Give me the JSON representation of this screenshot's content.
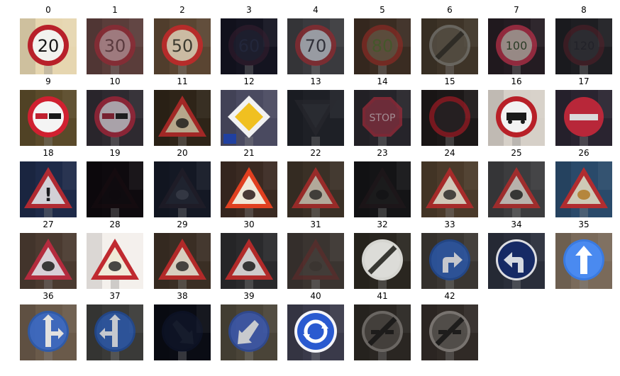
{
  "figure": {
    "panels": [
      {
        "label": "0",
        "kind": "speed",
        "text": "20",
        "bg": "#e6d6b0",
        "bright": 1.0,
        "ring": "#b8202a",
        "fill": "#f2f2ee",
        "ink": "#161616"
      },
      {
        "label": "1",
        "kind": "speed",
        "text": "30",
        "bg": "#5a3d3a",
        "bright": 0.8,
        "ring": "#8e2a34",
        "fill": "#b08a90",
        "ink": "#5a3a40"
      },
      {
        "label": "2",
        "kind": "speed",
        "text": "50",
        "bg": "#5a4532",
        "bright": 0.9,
        "ring": "#c02a2a",
        "fill": "#d8c8b0",
        "ink": "#3a3a30"
      },
      {
        "label": "3",
        "kind": "speed",
        "text": "60",
        "bg": "#141420",
        "bright": 0.5,
        "ring": "#3a1e30",
        "fill": "#26283a",
        "ink": "#303854"
      },
      {
        "label": "4",
        "kind": "speed",
        "text": "70",
        "bg": "#3a3a3e",
        "bright": 0.8,
        "ring": "#8a2a30",
        "fill": "#b0b4bc",
        "ink": "#30303a"
      },
      {
        "label": "5",
        "kind": "speed",
        "text": "80",
        "bg": "#3a2c22",
        "bright": 0.7,
        "ring": "#8a2a24",
        "fill": "#6a5a48",
        "ink": "#4a6a30"
      },
      {
        "label": "6",
        "kind": "endspeed",
        "text": "",
        "bg": "#3e3428",
        "bright": 0.7,
        "ring": "#7a7a76",
        "fill": "#5a544a",
        "ink": "#2a2a26"
      },
      {
        "label": "7",
        "kind": "speed",
        "text": "100",
        "bg": "#241c22",
        "bright": 0.7,
        "ring": "#c0304a",
        "fill": "#c8b8b0",
        "ink": "#2e4a2a"
      },
      {
        "label": "8",
        "kind": "speed",
        "text": "120",
        "bg": "#1e1e22",
        "bright": 0.5,
        "ring": "#5a1e28",
        "fill": "#3a3a40",
        "ink": "#262630"
      },
      {
        "label": "9",
        "kind": "nopassing",
        "text": "",
        "bg": "#5a4a2a",
        "bright": 1.0,
        "ring": "#d02030",
        "fill": "#f4f4f4",
        "ink": "#c02030"
      },
      {
        "label": "10",
        "kind": "nopassing",
        "text": "",
        "bg": "#2e2a30",
        "bright": 0.8,
        "ring": "#a02438",
        "fill": "#c8c0c8",
        "ink": "#8a2030"
      },
      {
        "label": "11",
        "kind": "tri",
        "text": "",
        "bg": "#2e2418",
        "bright": 0.8,
        "ring": "#c02a2a",
        "fill": "#d8c8a8",
        "ink": "#1e1e1e"
      },
      {
        "label": "12",
        "kind": "priority",
        "text": "",
        "bg": "#4a4a60",
        "bright": 1.0,
        "ring": "#f2f2f2",
        "fill": "#f0c020",
        "ink": "#2040a0"
      },
      {
        "label": "13",
        "kind": "yield",
        "text": "",
        "bg": "#1e2026",
        "bright": 0.5,
        "ring": "#2a2a30",
        "fill": "#34363c",
        "ink": "#2a2a30"
      },
      {
        "label": "14",
        "kind": "stop",
        "text": "STOP",
        "bg": "#26242a",
        "bright": 0.7,
        "ring": "#a02a3a",
        "fill": "#8a3040",
        "ink": "#d8b8c0"
      },
      {
        "label": "15",
        "kind": "novehicles",
        "text": "",
        "bg": "#1c1818",
        "bright": 0.7,
        "ring": "#a01a24",
        "fill": "#2a2226",
        "ink": "#2a2226"
      },
      {
        "label": "16",
        "kind": "notrucks",
        "text": "",
        "bg": "#d6d0c8",
        "bright": 1.0,
        "ring": "#b82028",
        "fill": "#f2f2f2",
        "ink": "#1a1a1a"
      },
      {
        "label": "17",
        "kind": "noentry",
        "text": "",
        "bg": "#2a2430",
        "bright": 0.9,
        "ring": "#c0202e",
        "fill": "#c8283a",
        "ink": "#eeeeee"
      },
      {
        "label": "18",
        "kind": "tri",
        "text": "!",
        "bg": "#1e2a48",
        "bright": 0.9,
        "ring": "#c02a30",
        "fill": "#e6e2e6",
        "ink": "#1a1a1a"
      },
      {
        "label": "19",
        "kind": "tri",
        "text": "",
        "bg": "#0e0a0e",
        "bright": 0.3,
        "ring": "#221014",
        "fill": "#140e12",
        "ink": "#0e0a0e"
      },
      {
        "label": "20",
        "kind": "tri",
        "text": "",
        "bg": "#141824",
        "bright": 0.5,
        "ring": "#28202a",
        "fill": "#2a2e3a",
        "ink": "#5a5e6a"
      },
      {
        "label": "21",
        "kind": "tri",
        "text": "",
        "bg": "#3a2a22",
        "bright": 1.0,
        "ring": "#e04020",
        "fill": "#f0e8d8",
        "ink": "#2a1a1a"
      },
      {
        "label": "22",
        "kind": "tri",
        "text": "",
        "bg": "#3a3026",
        "bright": 0.8,
        "ring": "#b02a2a",
        "fill": "#d0c8b8",
        "ink": "#2a2a2a"
      },
      {
        "label": "23",
        "kind": "tri",
        "text": "",
        "bg": "#141416",
        "bright": 0.4,
        "ring": "#2a1a1e",
        "fill": "#262626",
        "ink": "#141414"
      },
      {
        "label": "24",
        "kind": "tri",
        "text": "",
        "bg": "#4a3a2a",
        "bright": 0.9,
        "ring": "#b02a2a",
        "fill": "#e0d8c8",
        "ink": "#2a2a2a"
      },
      {
        "label": "25",
        "kind": "tri",
        "text": "",
        "bg": "#3c3c3e",
        "bright": 0.8,
        "ring": "#b82a2a",
        "fill": "#d8d0c8",
        "ink": "#1a1a1a"
      },
      {
        "label": "26",
        "kind": "tri",
        "text": "",
        "bg": "#2a4a6a",
        "bright": 0.9,
        "ring": "#c02a2a",
        "fill": "#e0d8c0",
        "ink": "#c08020"
      },
      {
        "label": "27",
        "kind": "tri",
        "text": "",
        "bg": "#4a3a30",
        "bright": 0.9,
        "ring": "#c02a40",
        "fill": "#e8e0e8",
        "ink": "#1a1a1a"
      },
      {
        "label": "28",
        "kind": "tri",
        "text": "",
        "bg": "#f4f0ec",
        "bright": 1.0,
        "ring": "#c02a30",
        "fill": "#f0ead8",
        "ink": "#2a2a2a"
      },
      {
        "label": "29",
        "kind": "tri",
        "text": "",
        "bg": "#3a2e24",
        "bright": 0.9,
        "ring": "#c02a2a",
        "fill": "#e8e0d0",
        "ink": "#2a2a2a"
      },
      {
        "label": "30",
        "kind": "tri",
        "text": "",
        "bg": "#2a2a2c",
        "bright": 0.9,
        "ring": "#c02a2a",
        "fill": "#e0dcdc",
        "ink": "#1a1a1a"
      },
      {
        "label": "31",
        "kind": "tri",
        "text": "",
        "bg": "#3a3430",
        "bright": 0.5,
        "ring": "#6a2a2a",
        "fill": "#4a4440",
        "ink": "#3a3430"
      },
      {
        "label": "32",
        "kind": "endall",
        "text": "",
        "bg": "#2a2620",
        "bright": 0.9,
        "ring": "#e8e8e4",
        "fill": "#f0f0ec",
        "ink": "#3a3a36"
      },
      {
        "label": "33",
        "kind": "blue",
        "text": "right",
        "bg": "#3a3632",
        "bright": 0.8,
        "ring": "#1e4a9a",
        "fill": "#2a5ab0",
        "ink": "#e8ecf4"
      },
      {
        "label": "34",
        "kind": "blue",
        "text": "left",
        "bg": "#2a2e3a",
        "bright": 0.9,
        "ring": "#f0f0f4",
        "fill": "#142a6a",
        "ink": "#e8ecf4"
      },
      {
        "label": "35",
        "kind": "blue",
        "text": "up",
        "bg": "#7a6a5a",
        "bright": 1.0,
        "ring": "#3a7ae0",
        "fill": "#4a8af0",
        "ink": "#ffffff"
      },
      {
        "label": "36",
        "kind": "blue",
        "text": "upright",
        "bg": "#6a5a4a",
        "bright": 0.9,
        "ring": "#2a5ab0",
        "fill": "#3a6ac8",
        "ink": "#f0f0f0"
      },
      {
        "label": "37",
        "kind": "blue",
        "text": "upleft",
        "bg": "#3a3a38",
        "bright": 0.8,
        "ring": "#1e4a9a",
        "fill": "#2a5ab0",
        "ink": "#e8ecf4"
      },
      {
        "label": "38",
        "kind": "blue",
        "text": "downright",
        "bg": "#0a0c14",
        "bright": 0.4,
        "ring": "#101a3a",
        "fill": "#141e3e",
        "ink": "#2a3450"
      },
      {
        "label": "39",
        "kind": "blue",
        "text": "downleft",
        "bg": "#4a4438",
        "bright": 0.8,
        "ring": "#2a4aa0",
        "fill": "#3a5ab8",
        "ink": "#e8ecf4"
      },
      {
        "label": "40",
        "kind": "roundabout",
        "text": "",
        "bg": "#3a3a4a",
        "bright": 1.0,
        "ring": "#f4f4f8",
        "fill": "#2a5ad0",
        "ink": "#ffffff"
      },
      {
        "label": "41",
        "kind": "endnopassing",
        "text": "",
        "bg": "#2a2622",
        "bright": 0.8,
        "ring": "#7a7672",
        "fill": "#4a4642",
        "ink": "#1a1a1a"
      },
      {
        "label": "42",
        "kind": "endnopassing",
        "text": "",
        "bg": "#302a26",
        "bright": 0.8,
        "ring": "#8a8682",
        "fill": "#5a5652",
        "ink": "#1a1a1a"
      }
    ]
  }
}
